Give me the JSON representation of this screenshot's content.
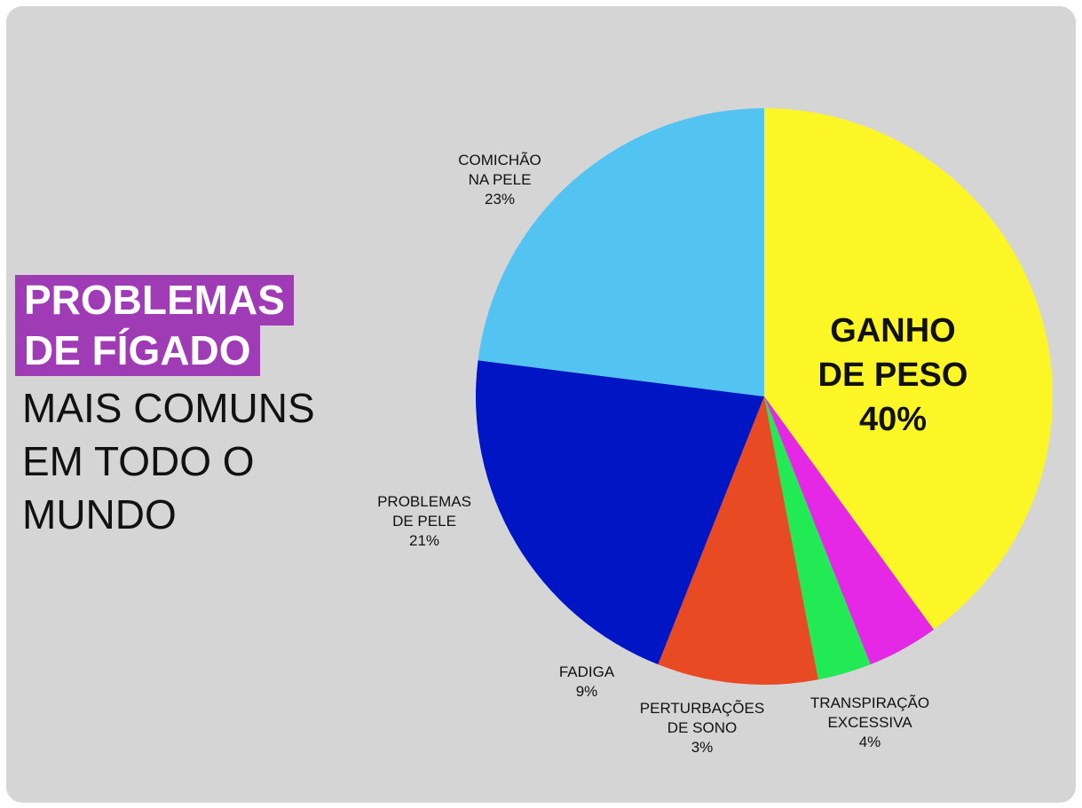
{
  "title": {
    "highlight": [
      "PROBLEMAS",
      "DE FÍGADO"
    ],
    "rest": [
      "MAIS COMUNS",
      "EM TODO O",
      "MUNDO"
    ]
  },
  "chart_data": {
    "type": "pie",
    "slices": [
      {
        "label": [
          "GANHO",
          "DE PESO"
        ],
        "value": 40,
        "value_label": "40%",
        "color": "#fdf626"
      },
      {
        "label": [
          "TRANSPIRAÇÃO",
          "EXCESSIVA"
        ],
        "value": 4,
        "value_label": "4%",
        "color": "#e428e6"
      },
      {
        "label": [
          "PERTURBAÇÕES",
          "DE SONO"
        ],
        "value": 3,
        "value_label": "3%",
        "color": "#22ea55"
      },
      {
        "label": [
          "FADIGA"
        ],
        "value": 9,
        "value_label": "9%",
        "color": "#e84a24"
      },
      {
        "label": [
          "PROBLEMAS",
          "DE PELE"
        ],
        "value": 21,
        "value_label": "21%",
        "color": "#0016c4"
      },
      {
        "label": [
          "COMICHÃO",
          "NA PELE"
        ],
        "value": 23,
        "value_label": "23%",
        "color": "#53c3f2"
      }
    ]
  }
}
